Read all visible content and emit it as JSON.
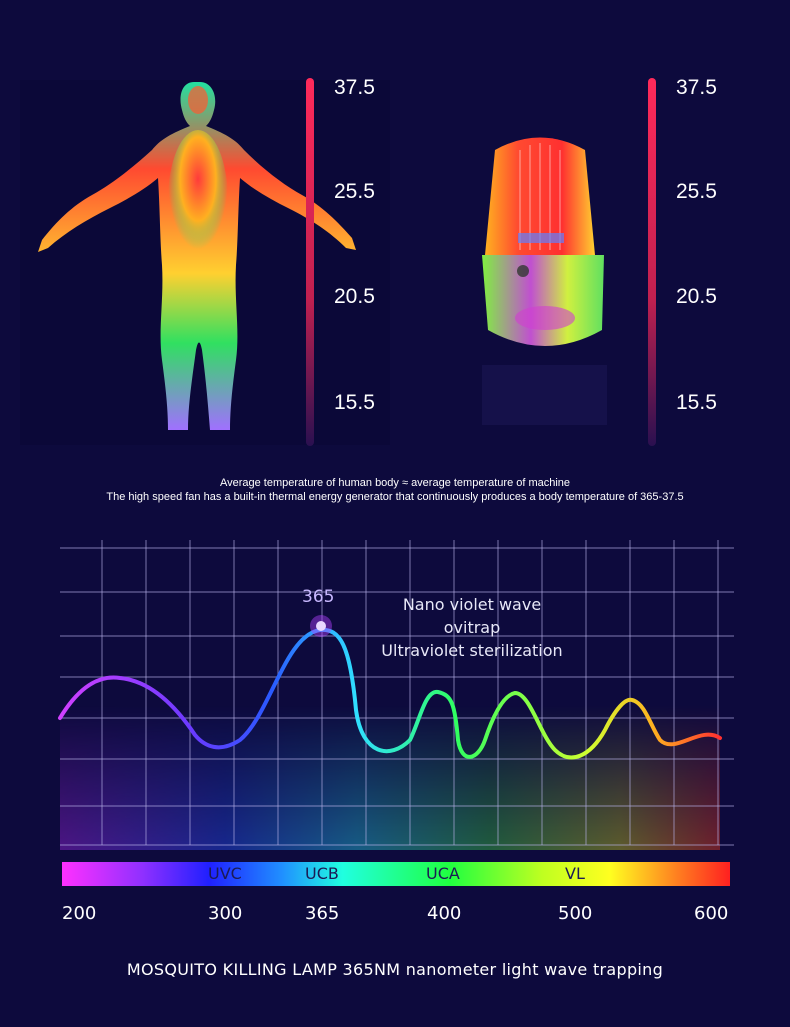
{
  "thermal": {
    "human_scale": [
      "37.5",
      "25.5",
      "20.5",
      "15.5"
    ],
    "machine_scale": [
      "37.5",
      "25.5",
      "20.5",
      "15.5"
    ]
  },
  "caption": {
    "line1": "Average temperature of human body ≈ average temperature of machine",
    "line2": "The high speed fan has a built-in thermal energy generator that continuously produces a body temperature of 365-37.5"
  },
  "wave": {
    "peak_label": "365",
    "note_line1": "Nano violet wave",
    "note_line2": "ovitrap",
    "note_line3": "Ultraviolet sterilization"
  },
  "spectrum": {
    "bands": [
      "UVC",
      "UCB",
      "UCA",
      "VL"
    ],
    "axis": [
      "200",
      "300",
      "365",
      "400",
      "500",
      "600"
    ]
  },
  "footer": "MOSQUITO KILLING LAMP 365NM nanometer light wave trapping",
  "colors": {
    "background": "#0d0a3d",
    "scale_bar": "#ff2a5a"
  }
}
